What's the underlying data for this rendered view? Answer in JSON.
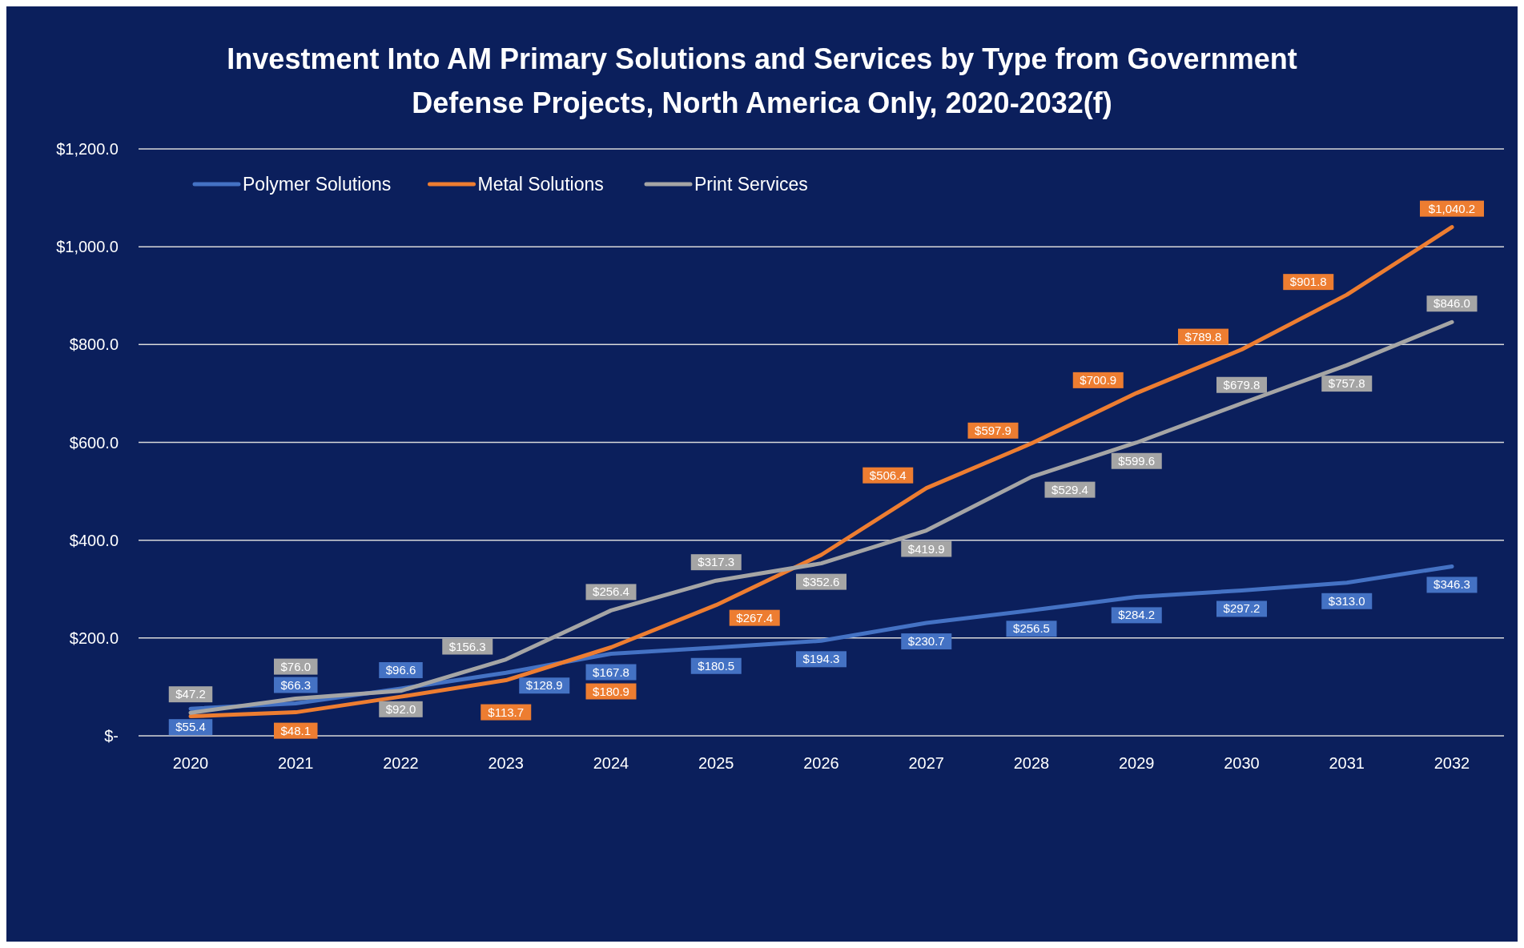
{
  "chart_data": {
    "type": "line",
    "title": "Investment Into AM Primary Solutions and Services by Type from Government Defense Projects, North America Only, 2020-2032(f)",
    "categories": [
      "2020",
      "2021",
      "2022",
      "2023",
      "2024",
      "2025",
      "2026",
      "2027",
      "2028",
      "2029",
      "2030",
      "2031",
      "2032"
    ],
    "series": [
      {
        "name": "Polymer Solutions",
        "color": "#4472c4",
        "values": [
          55.4,
          66.3,
          96.6,
          128.9,
          167.8,
          180.5,
          194.3,
          230.7,
          256.5,
          284.2,
          297.2,
          313.0,
          346.3
        ],
        "value_labels": [
          "$55.4",
          "$66.3",
          "$96.6",
          "$128.9",
          "$167.8",
          "$180.5",
          "$194.3",
          "$230.7",
          "$256.5",
          "$284.2",
          "$297.2",
          "$313.0",
          "$346.3"
        ]
      },
      {
        "name": "Metal Solutions",
        "color": "#ed7d31",
        "values": [
          40,
          48.1,
          80,
          113.7,
          180.9,
          267.4,
          370,
          506.4,
          597.9,
          700.9,
          789.8,
          901.8,
          1040.2
        ],
        "value_labels": [
          null,
          "$48.1",
          null,
          "$113.7",
          "$180.9",
          "$267.4",
          null,
          "$506.4",
          "$597.9",
          "$700.9",
          "$789.8",
          "$901.8",
          "$1,040.2"
        ]
      },
      {
        "name": "Print Services",
        "color": "#a5a5a5",
        "values": [
          47.2,
          76.0,
          92.0,
          156.3,
          256.4,
          317.3,
          352.6,
          419.9,
          529.4,
          599.6,
          679.8,
          757.8,
          846.0
        ],
        "value_labels": [
          "$47.2",
          "$76.0",
          "$92.0",
          "$156.3",
          "$256.4",
          "$317.3",
          "$352.6",
          "$419.9",
          "$529.4",
          "$599.6",
          "$679.8",
          "$757.8",
          "$846.0"
        ]
      }
    ],
    "ylim": [
      0,
      1200
    ],
    "yticks": [
      {
        "value": 0,
        "label": "$-"
      },
      {
        "value": 200,
        "label": "$200.0"
      },
      {
        "value": 400,
        "label": "$400.0"
      },
      {
        "value": 600,
        "label": "$600.0"
      },
      {
        "value": 800,
        "label": "$800.0"
      },
      {
        "value": 1000,
        "label": "$1,000.0"
      },
      {
        "value": 1200,
        "label": "$1,200.0"
      }
    ],
    "grid": "y",
    "legend": "top left",
    "marker": "none",
    "line_style": "solid"
  }
}
